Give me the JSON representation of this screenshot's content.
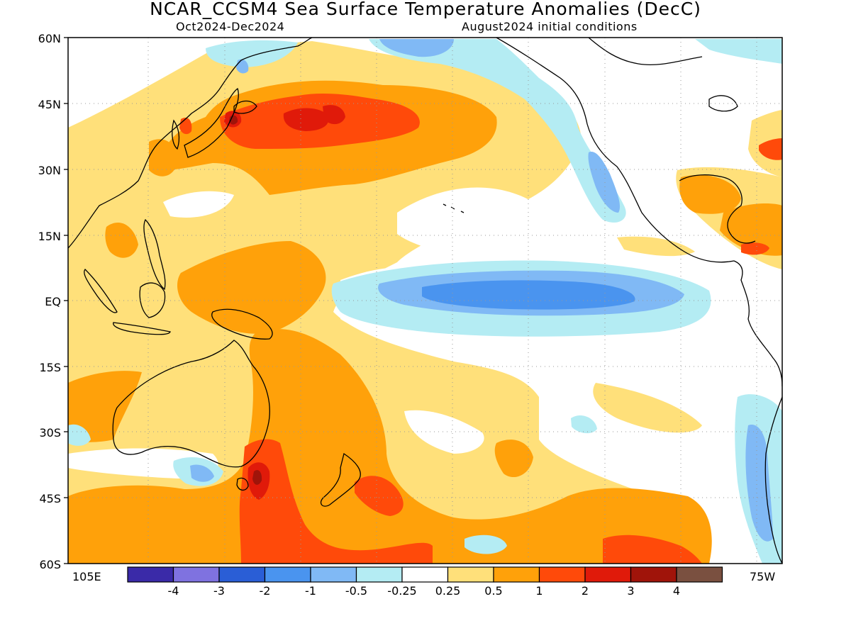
{
  "title": "NCAR_CCSM4 Sea Surface Temperature Anomalies (DecC)",
  "subtitle_left": "Oct2024-Dec2024",
  "subtitle_right": "August2024 initial conditions",
  "y_axis_labels": [
    "60N",
    "45N",
    "30N",
    "15N",
    "EQ",
    "15S",
    "30S",
    "45S",
    "60S"
  ],
  "x_axis_labels": {
    "left": "105E",
    "right": "75W"
  },
  "colorbar": {
    "colors": [
      "#3a2aa8",
      "#7f72e0",
      "#2a5ed6",
      "#4a94ef",
      "#80b9f5",
      "#b4ecf3",
      "#ffffff",
      "#ffe07a",
      "#ffa10a",
      "#ff4a0a",
      "#e01a0a",
      "#a0140a",
      "#7a5040"
    ],
    "tick_labels": [
      "-4",
      "-3",
      "-2",
      "-1",
      "-0.5",
      "-0.25",
      "0.25",
      "0.5",
      "1",
      "2",
      "3",
      "4"
    ]
  }
}
